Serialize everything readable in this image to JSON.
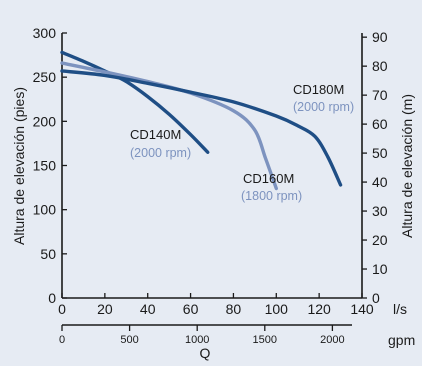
{
  "chart_data": {
    "type": "line",
    "xlabel": "Q",
    "ylabel_left": "Altura de elevación (pies)",
    "ylabel_right": "Altura de elevación (m)",
    "x_unit_primary": "l/s",
    "x_unit_secondary": "gpm",
    "xlim": [
      0,
      140
    ],
    "ylim": [
      0,
      300
    ],
    "ylim_right": [
      0,
      91.44
    ],
    "x_ticks": [
      "0",
      "20",
      "40",
      "60",
      "80",
      "100",
      "120",
      "140"
    ],
    "x2_ticks": [
      "0",
      "500",
      "1000",
      "1500",
      "2000"
    ],
    "y_ticks": [
      "0",
      "50",
      "100",
      "150",
      "200",
      "250",
      "300"
    ],
    "y2_ticks": [
      "0",
      "10",
      "20",
      "30",
      "40",
      "50",
      "60",
      "70",
      "80",
      "90"
    ],
    "grid": false,
    "series": [
      {
        "name": "CD140M",
        "sublabel": "(2000 rpm)",
        "color": "#1f4e85",
        "x": [
          0,
          10,
          20,
          30,
          40,
          50,
          60,
          68
        ],
        "y": [
          278,
          268,
          257,
          245,
          228,
          208,
          185,
          165
        ]
      },
      {
        "name": "CD160M",
        "sublabel": "(1800 rpm)",
        "color": "#7d93bf",
        "x": [
          0,
          20,
          40,
          60,
          80,
          90,
          95,
          100
        ],
        "y": [
          266,
          256,
          245,
          232,
          212,
          190,
          158,
          124
        ]
      },
      {
        "name": "CD180M",
        "sublabel": "(2000 rpm)",
        "color": "#1f4e85",
        "x": [
          0,
          20,
          40,
          60,
          80,
          100,
          110,
          118,
          124,
          130
        ],
        "y": [
          257,
          252,
          243,
          233,
          222,
          206,
          195,
          183,
          160,
          128
        ]
      }
    ]
  }
}
